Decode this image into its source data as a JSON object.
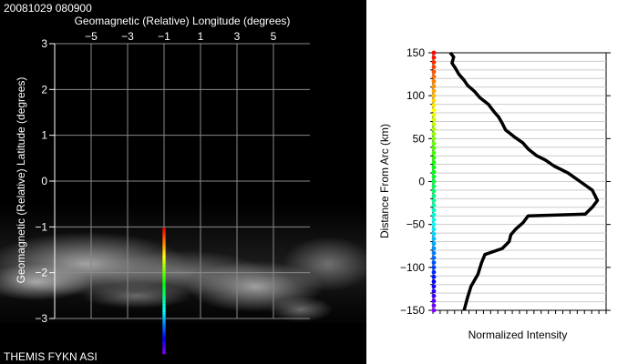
{
  "header": {
    "timestamp": "20081029 080900"
  },
  "footer": {
    "caption": "THEMIS FYKN ASI"
  },
  "colors": {
    "panel_bg": "#000000",
    "grid": "#8a8a8a",
    "trace": "#000000",
    "right_grid": "#cccccc"
  },
  "chart_data": [
    {
      "type": "scatter",
      "title": "",
      "xlabel": "Geomagnetic (Relative) Longitude (degrees)",
      "ylabel": "Geomagnetic (Relative) Latitude (degrees)",
      "xlim": [
        -7,
        7
      ],
      "ylim": [
        -3,
        3
      ],
      "x_ticks": [
        -5,
        -3,
        -1,
        1,
        3,
        5
      ],
      "x_tick_labels": [
        "−5",
        "−3",
        "−1",
        "1",
        "3",
        "5"
      ],
      "y_ticks": [
        3,
        2,
        1,
        0,
        -1,
        -2,
        -3
      ],
      "y_tick_labels": [
        "3",
        "2",
        "1",
        "0",
        "−1",
        "−2",
        "−3"
      ],
      "grid": true,
      "background": "all-sky camera image (auroral arc, lower half)",
      "arc_points": {
        "longitude": -1,
        "latitude_start": -1.05,
        "latitude_end": -3.75,
        "count": 55,
        "colormap": "red-orange-yellow-green-cyan-blue-violet (top to bottom)"
      }
    },
    {
      "type": "line",
      "title": "",
      "xlabel": "Normalized Intensity",
      "ylabel": "Distance From Arc (km)",
      "ylim": [
        -150,
        150
      ],
      "y_ticks": [
        150,
        100,
        50,
        0,
        -50,
        -100,
        -150
      ],
      "y_tick_labels": [
        "150",
        "100",
        "50",
        "0",
        "−50",
        "−100",
        "−150"
      ],
      "xlim": [
        0,
        1
      ],
      "grid": true,
      "series": [
        {
          "x": [
            0.1,
            0.12,
            0.11,
            0.13,
            0.15,
            0.18,
            0.2,
            0.24,
            0.27,
            0.32,
            0.35,
            0.38,
            0.4,
            0.42,
            0.47,
            0.52,
            0.55,
            0.6,
            0.65,
            0.7,
            0.78,
            0.85,
            0.92,
            0.95,
            0.92,
            0.88,
            0.55,
            0.52,
            0.48,
            0.45,
            0.44,
            0.4,
            0.3,
            0.28,
            0.26,
            0.22,
            0.2,
            0.18
          ],
          "y": [
            150,
            145,
            138,
            132,
            125,
            118,
            112,
            105,
            98,
            90,
            82,
            75,
            68,
            60,
            52,
            45,
            38,
            30,
            25,
            18,
            10,
            0,
            -10,
            -22,
            -30,
            -38,
            -40,
            -48,
            -55,
            -62,
            -70,
            -78,
            -85,
            -95,
            -108,
            -122,
            -135,
            -150
          ]
        }
      ],
      "distance_markers": {
        "from": -150,
        "to": 150,
        "count": 55,
        "colormap": "violet-blue-cyan-green-yellow-orange-red (bottom to top)"
      }
    }
  ]
}
